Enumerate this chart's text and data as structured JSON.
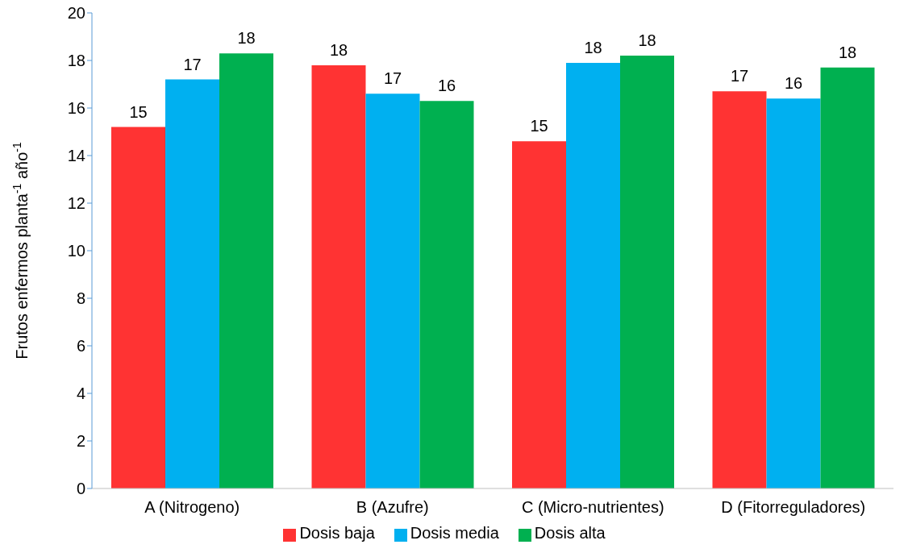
{
  "chart_data": {
    "type": "bar",
    "ylabel": "Frutos enfermos planta$^{-1}$ año$^{-1}$",
    "categories": [
      "A (Nitrogeno)",
      "B (Azufre)",
      "C (Micro-nutrientes)",
      "D (Fitorreguladores)"
    ],
    "series": [
      {
        "name": "Dosis baja",
        "color": "#ff3333",
        "values": [
          15.2,
          17.8,
          14.6,
          16.7
        ],
        "value_labels": [
          "15",
          "18",
          "15",
          "17"
        ]
      },
      {
        "name": "Dosis media",
        "color": "#00b0f0",
        "values": [
          17.2,
          16.6,
          17.9,
          16.4
        ],
        "value_labels": [
          "17",
          "17",
          "18",
          "16"
        ]
      },
      {
        "name": "Dosis alta",
        "color": "#00b050",
        "values": [
          18.3,
          16.3,
          18.2,
          17.7
        ],
        "value_labels": [
          "18",
          "16",
          "18",
          "18"
        ]
      }
    ],
    "ylim": [
      0,
      20
    ],
    "yticks": [
      0,
      2,
      4,
      6,
      8,
      10,
      12,
      14,
      16,
      18,
      20
    ],
    "grid": false,
    "legend": "bottom"
  }
}
